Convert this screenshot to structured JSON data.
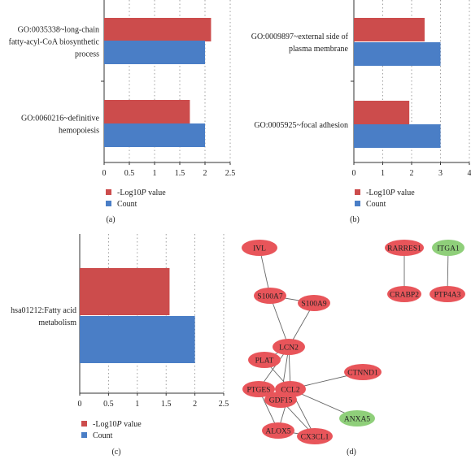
{
  "colors": {
    "log": "#cc4c4c",
    "count": "#4a7ec6",
    "node_red": "#e8555a",
    "node_green": "#8fcf7a",
    "edge": "#666666"
  },
  "chart_data": [
    {
      "panel": "(a)",
      "type": "bar",
      "orientation": "horizontal",
      "categories": [
        "GO:0035338~long-chain fatty-acyl-CoA biosynthetic process",
        "GO:0060216~definitive hemopoiesis"
      ],
      "category_lines": [
        [
          "GO:0035338~long-chain",
          "fatty-acyl-CoA biosynthetic",
          "process"
        ],
        [
          "GO:0060216~definitive",
          "hemopoiesis"
        ]
      ],
      "series": [
        {
          "name": "-Log10P value",
          "values": [
            2.12,
            1.7
          ]
        },
        {
          "name": "Count",
          "values": [
            2,
            2
          ]
        }
      ],
      "xlim": [
        0,
        2.5
      ],
      "ticks": [
        "0",
        "0.5",
        "1",
        "1.5",
        "2",
        "2.5"
      ],
      "tick_values": [
        0,
        0.5,
        1,
        1.5,
        2,
        2.5
      ],
      "legend": [
        "-Log10P value",
        "Count"
      ],
      "grid": "dotted-vertical"
    },
    {
      "panel": "(b)",
      "type": "bar",
      "orientation": "horizontal",
      "categories": [
        "GO:0009897~external side of plasma membrane",
        "GO:0005925~focal adhesion"
      ],
      "category_lines": [
        [
          "GO:0009897~external side of",
          "plasma membrane"
        ],
        [
          "GO:0005925~focal adhesion"
        ]
      ],
      "series": [
        {
          "name": "-Log10P value",
          "values": [
            2.45,
            1.92
          ]
        },
        {
          "name": "Count",
          "values": [
            3,
            3
          ]
        }
      ],
      "xlim": [
        0,
        4
      ],
      "ticks": [
        "0",
        "1",
        "2",
        "3",
        "4"
      ],
      "tick_values": [
        0,
        1,
        2,
        3,
        4
      ],
      "legend": [
        "-Log10P value",
        "Count"
      ],
      "grid": "dotted-vertical"
    },
    {
      "panel": "(c)",
      "type": "bar",
      "orientation": "horizontal",
      "categories": [
        "hsa01212:Fatty acid metabolism"
      ],
      "category_lines": [
        [
          "hsa01212:Fatty acid",
          "metabolism"
        ]
      ],
      "series": [
        {
          "name": "-Log10P value",
          "values": [
            1.56
          ]
        },
        {
          "name": "Count",
          "values": [
            2
          ]
        }
      ],
      "xlim": [
        0,
        2.5
      ],
      "ticks": [
        "0",
        "0.5",
        "1",
        "1.5",
        "2",
        "2.5"
      ],
      "tick_values": [
        0,
        0.5,
        1,
        1.5,
        2,
        2.5
      ],
      "legend": [
        "-Log10P value",
        "Count"
      ],
      "grid": "dotted-vertical"
    }
  ],
  "network": {
    "panel": "(d)",
    "nodes": [
      {
        "id": "IVL",
        "group": "red"
      },
      {
        "id": "S100A7",
        "group": "red"
      },
      {
        "id": "S100A9",
        "group": "red"
      },
      {
        "id": "LCN2",
        "group": "red"
      },
      {
        "id": "PLAT",
        "group": "red"
      },
      {
        "id": "PTGES",
        "group": "red"
      },
      {
        "id": "CCL2",
        "group": "red"
      },
      {
        "id": "CTNND1",
        "group": "red"
      },
      {
        "id": "GDF15",
        "group": "red"
      },
      {
        "id": "ALOX5",
        "group": "red"
      },
      {
        "id": "CX3CL1",
        "group": "red"
      },
      {
        "id": "ANXA5",
        "group": "green"
      },
      {
        "id": "RARRES1",
        "group": "red"
      },
      {
        "id": "CRABP2",
        "group": "red"
      },
      {
        "id": "ITGA1",
        "group": "green"
      },
      {
        "id": "PTP4A3",
        "group": "red"
      }
    ],
    "edges": [
      [
        "IVL",
        "S100A7"
      ],
      [
        "S100A7",
        "S100A9"
      ],
      [
        "S100A7",
        "LCN2"
      ],
      [
        "S100A9",
        "LCN2"
      ],
      [
        "LCN2",
        "PLAT"
      ],
      [
        "LCN2",
        "PTGES"
      ],
      [
        "LCN2",
        "CCL2"
      ],
      [
        "LCN2",
        "GDF15"
      ],
      [
        "PLAT",
        "CCL2"
      ],
      [
        "PTGES",
        "CCL2"
      ],
      [
        "PTGES",
        "ALOX5"
      ],
      [
        "CCL2",
        "CTNND1"
      ],
      [
        "CCL2",
        "GDF15"
      ],
      [
        "CCL2",
        "ALOX5"
      ],
      [
        "CCL2",
        "CX3CL1"
      ],
      [
        "CCL2",
        "ANXA5"
      ],
      [
        "GDF15",
        "CX3CL1"
      ],
      [
        "ALOX5",
        "CX3CL1"
      ],
      [
        "RARRES1",
        "CRABP2"
      ],
      [
        "ITGA1",
        "PTP4A3"
      ]
    ]
  }
}
